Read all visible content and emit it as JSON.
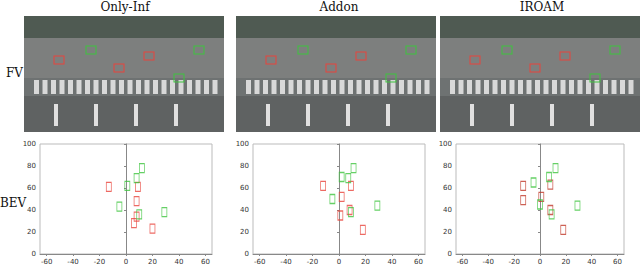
{
  "figure": {
    "columns": [
      "Only-Inf",
      "Addon",
      "IROAM"
    ],
    "rows": [
      "FV",
      "BEV"
    ]
  },
  "chart_data": [
    {
      "type": "scatter",
      "xlim": [
        -65,
        65
      ],
      "xticks": [
        -60,
        -40,
        -20,
        0,
        20,
        40,
        60
      ],
      "ylim": [
        0,
        100
      ],
      "yticks": [
        0,
        20,
        40,
        60,
        80,
        100
      ],
      "grid": false,
      "series": [
        {
          "color": "#e8453c",
          "marker": "rect",
          "x": [
            -13,
            9,
            8,
            8,
            6,
            20
          ],
          "values": [
            61,
            61,
            48,
            34,
            28,
            23
          ]
        },
        {
          "color": "#3fc43f",
          "marker": "rect",
          "x": [
            12,
            8,
            1,
            -5,
            10,
            29
          ],
          "values": [
            78,
            69,
            62,
            43,
            36,
            38
          ]
        }
      ]
    },
    {
      "type": "scatter",
      "xlim": [
        -65,
        65
      ],
      "xticks": [
        -60,
        -40,
        -20,
        0,
        20,
        40,
        60
      ],
      "ylim": [
        0,
        100
      ],
      "yticks": [
        0,
        20,
        40,
        60,
        80,
        100
      ],
      "grid": false,
      "series": [
        {
          "color": "#e8453c",
          "marker": "rect",
          "x": [
            -12,
            9,
            2,
            8,
            1,
            18
          ],
          "values": [
            62,
            62,
            52,
            40,
            35,
            22
          ]
        },
        {
          "color": "#3fc43f",
          "marker": "rect",
          "x": [
            11,
            7,
            2,
            -5,
            9,
            29
          ],
          "values": [
            78,
            69,
            70,
            50,
            38,
            44
          ]
        }
      ]
    },
    {
      "type": "scatter",
      "xlim": [
        -65,
        65
      ],
      "xticks": [
        -60,
        -40,
        -20,
        0,
        20,
        40,
        60
      ],
      "ylim": [
        0,
        100
      ],
      "yticks": [
        0,
        20,
        40,
        60,
        80,
        100
      ],
      "grid": false,
      "series": [
        {
          "color": "#c0392b",
          "marker": "rect",
          "x": [
            -13,
            8,
            1,
            -13,
            8,
            18
          ],
          "values": [
            62,
            63,
            52,
            49,
            40,
            22
          ]
        },
        {
          "color": "#3fc43f",
          "marker": "rect",
          "x": [
            12,
            7,
            -5,
            0,
            9,
            29
          ],
          "values": [
            78,
            70,
            65,
            45,
            36,
            44
          ]
        }
      ]
    }
  ]
}
